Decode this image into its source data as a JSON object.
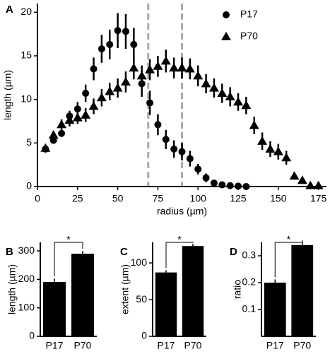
{
  "chart_data": [
    {
      "type": "scatter",
      "panel_label": "A",
      "xlabel": "radius (µm)",
      "ylabel": "length (µm)",
      "xlim": [
        0,
        180
      ],
      "ylim": [
        0,
        21
      ],
      "xticks": [
        0,
        25,
        50,
        75,
        100,
        125,
        150,
        175
      ],
      "yticks": [
        0,
        5,
        10,
        15,
        20
      ],
      "reference_lines": [
        69,
        90
      ],
      "reference_color": "#aaaaaa",
      "legend": "upper right",
      "series": [
        {
          "name": "P17",
          "marker": "circle",
          "color": "#000000",
          "x": [
            5,
            10,
            15,
            20,
            25,
            30,
            35,
            40,
            45,
            50,
            55,
            60,
            65,
            70,
            75,
            80,
            85,
            90,
            95,
            100,
            105,
            110,
            115,
            120,
            125,
            130
          ],
          "values": [
            4.3,
            5.3,
            6.1,
            8.1,
            8.9,
            10.7,
            13.5,
            15.8,
            16.3,
            17.9,
            17.8,
            16.3,
            11.8,
            9.6,
            7.1,
            5.4,
            4.3,
            4.0,
            3.2,
            2.0,
            1.0,
            0.4,
            0.2,
            0.1,
            0.05,
            0
          ],
          "errors": [
            0.3,
            0.4,
            0.4,
            0.6,
            0.8,
            1.0,
            1.3,
            1.6,
            1.7,
            2.0,
            2.0,
            1.9,
            1.5,
            1.4,
            1.2,
            1.1,
            1.0,
            1.0,
            0.9,
            0.6,
            0.5,
            0.2,
            0.1,
            0.1,
            0.05,
            0
          ]
        },
        {
          "name": "P70",
          "marker": "triangle",
          "color": "#000000",
          "x": [
            5,
            10,
            15,
            20,
            25,
            30,
            35,
            40,
            45,
            50,
            55,
            60,
            65,
            70,
            75,
            80,
            85,
            90,
            95,
            100,
            105,
            110,
            115,
            120,
            125,
            130,
            135,
            140,
            145,
            150,
            155,
            160,
            165,
            170,
            175
          ],
          "values": [
            4.4,
            5.9,
            7.1,
            7.6,
            7.9,
            8.2,
            9.2,
            10.2,
            10.9,
            11.3,
            12.0,
            13.6,
            12.7,
            13.4,
            13.8,
            14.4,
            13.6,
            13.6,
            13.5,
            12.7,
            11.8,
            11.3,
            10.7,
            10.3,
            9.7,
            9.3,
            7.0,
            5.2,
            4.3,
            4.0,
            3.3,
            1.2,
            0.7,
            0.1,
            0.1
          ],
          "errors": [
            0.3,
            0.5,
            0.6,
            0.7,
            0.7,
            0.8,
            0.9,
            1.0,
            1.0,
            1.1,
            1.2,
            1.3,
            1.2,
            1.2,
            1.2,
            1.3,
            1.2,
            1.2,
            1.2,
            1.2,
            1.1,
            1.1,
            1.1,
            1.1,
            1.0,
            1.0,
            1.0,
            1.0,
            0.9,
            0.9,
            0.8,
            0.4,
            0.3,
            0.1,
            0.1
          ]
        }
      ]
    },
    {
      "type": "bar",
      "panel_label": "B",
      "ylabel": "length (µm)",
      "categories": [
        "P17",
        "P70"
      ],
      "values": [
        191,
        290
      ],
      "errors": [
        12,
        10
      ],
      "ylim": [
        0,
        330
      ],
      "yticks": [
        0,
        100,
        200,
        300
      ],
      "annotation": "*",
      "color": "#000000"
    },
    {
      "type": "bar",
      "panel_label": "C",
      "ylabel": "extent (µm)",
      "categories": [
        "P17",
        "P70"
      ],
      "values": [
        87,
        123
      ],
      "errors": [
        3,
        3
      ],
      "ylim": [
        0,
        128
      ],
      "yticks": [
        0,
        50,
        100
      ],
      "annotation": "*",
      "color": "#000000"
    },
    {
      "type": "bar",
      "panel_label": "D",
      "ylabel": "ratio",
      "categories": [
        "P17",
        "P70"
      ],
      "values": [
        0.2,
        0.34
      ],
      "errors": [
        0.012,
        0.01
      ],
      "ylim": [
        0,
        0.35
      ],
      "yticks": [
        0.1,
        0.2,
        0.3
      ],
      "annotation": "*",
      "color": "#000000"
    }
  ]
}
